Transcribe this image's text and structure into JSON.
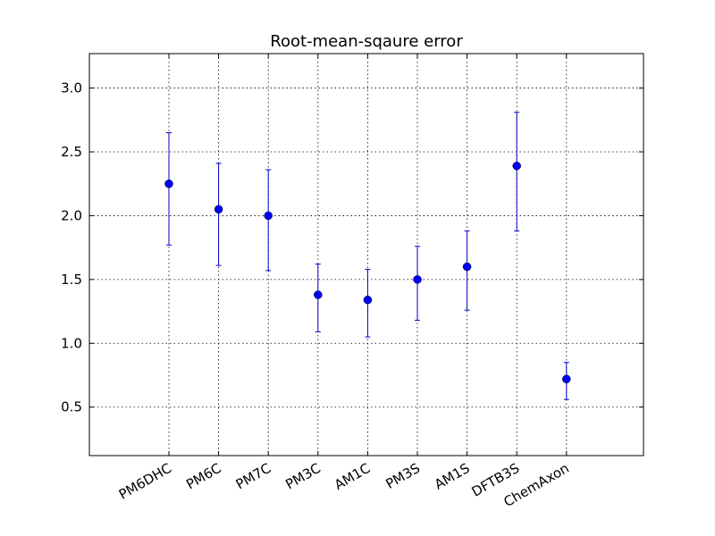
{
  "chart_data": {
    "type": "scatter",
    "title": "Root-mean-sqaure error",
    "xlabel": "",
    "ylabel": "",
    "categories": [
      "PM6DHC",
      "PM6C",
      "PM7C",
      "PM3C",
      "AM1C",
      "PM3S",
      "AM1S",
      "DFTB3S",
      "ChemAxon"
    ],
    "values": [
      2.25,
      2.05,
      2.0,
      1.38,
      1.34,
      1.5,
      1.6,
      2.39,
      0.72
    ],
    "err_low": [
      1.77,
      1.61,
      1.57,
      1.09,
      1.05,
      1.18,
      1.26,
      1.88,
      0.56
    ],
    "err_high": [
      2.65,
      2.41,
      2.36,
      1.62,
      1.58,
      1.76,
      1.88,
      2.81,
      0.85
    ],
    "ylim": [
      0.12,
      3.27
    ],
    "yticks": [
      0.5,
      1.0,
      1.5,
      2.0,
      2.5,
      3.0
    ],
    "ytick_labels": [
      "0.5",
      "1.0",
      "1.5",
      "2.0",
      "2.5",
      "3.0"
    ],
    "grid": true,
    "color": "#0000ff",
    "errorbar_color": "#0000cc"
  }
}
